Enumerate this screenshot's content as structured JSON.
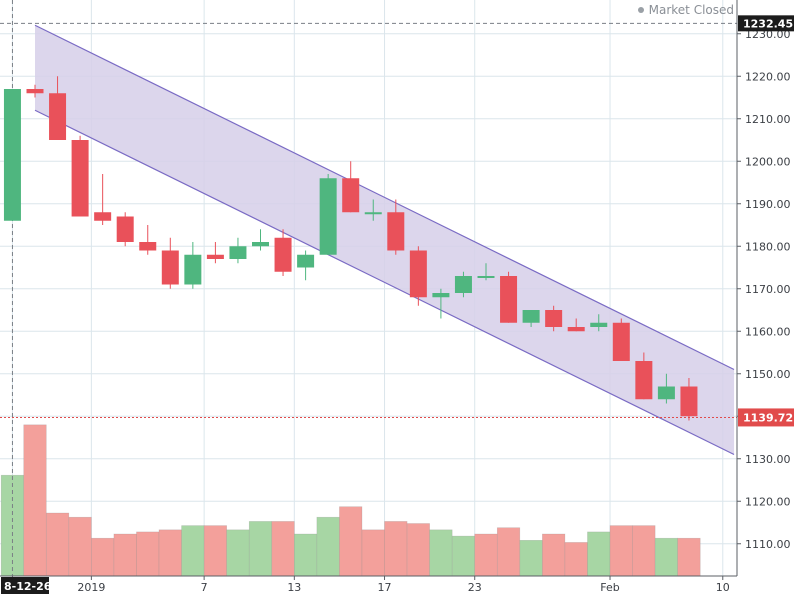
{
  "header": {
    "status_text": "Market Closed",
    "status_dot_color": "#9aa0a6"
  },
  "colors": {
    "up": "#4fb67f",
    "down": "#e9515a",
    "volume_up": "#a7d6a4",
    "volume_down": "#f3a09b",
    "channel_fill": "#d6cfe9",
    "channel_line": "#7a6bc4",
    "grid": "#dbe6ec",
    "current_price": "#e14b4b",
    "axis_label_dark": "#1c1c1c"
  },
  "chart_data": {
    "type": "candlestick",
    "ylim": [
      1101,
      1233
    ],
    "grid": true,
    "price_ticks": [
      "1110.00",
      "1120.00",
      "1130.00",
      "1140.00",
      "1150.00",
      "1160.00",
      "1170.00",
      "1180.00",
      "1190.00",
      "1200.00",
      "1210.00",
      "1220.00",
      "1230.00"
    ],
    "x_labels": [
      {
        "bar": -1,
        "text": "8-12-26",
        "highlight": true
      },
      {
        "bar": 2.5,
        "text": "2019"
      },
      {
        "bar": 7.5,
        "text": "7"
      },
      {
        "bar": 11.5,
        "text": "13"
      },
      {
        "bar": 15.5,
        "text": "17"
      },
      {
        "bar": 19.5,
        "text": "23"
      },
      {
        "bar": 25.5,
        "text": "Feb"
      },
      {
        "bar": 30.5,
        "text": "10"
      }
    ],
    "high_marker": {
      "value": 1232.45,
      "label": "1232.45"
    },
    "current_price": {
      "value": 1139.72,
      "label": "1139.72"
    },
    "channel": {
      "upper": [
        {
          "bar": 0,
          "price": 1232
        },
        {
          "bar": 31,
          "price": 1151
        }
      ],
      "lower": [
        {
          "bar": 0,
          "price": 1212
        },
        {
          "bar": 31,
          "price": 1131
        }
      ]
    },
    "candles": [
      {
        "o": 1186,
        "h": 1217,
        "l": 1186,
        "c": 1217
      },
      {
        "o": 1217,
        "h": 1218,
        "l": 1215,
        "c": 1216
      },
      {
        "o": 1216,
        "h": 1220,
        "l": 1205,
        "c": 1205
      },
      {
        "o": 1205,
        "h": 1206,
        "l": 1187,
        "c": 1187
      },
      {
        "o": 1188,
        "h": 1197,
        "l": 1185,
        "c": 1186
      },
      {
        "o": 1187,
        "h": 1188,
        "l": 1180,
        "c": 1181
      },
      {
        "o": 1181,
        "h": 1185,
        "l": 1178,
        "c": 1179
      },
      {
        "o": 1179,
        "h": 1182,
        "l": 1170,
        "c": 1171
      },
      {
        "o": 1171,
        "h": 1181,
        "l": 1170,
        "c": 1178
      },
      {
        "o": 1178,
        "h": 1181,
        "l": 1176,
        "c": 1177
      },
      {
        "o": 1177,
        "h": 1182,
        "l": 1176,
        "c": 1180
      },
      {
        "o": 1180,
        "h": 1184,
        "l": 1179,
        "c": 1181
      },
      {
        "o": 1182,
        "h": 1184,
        "l": 1173,
        "c": 1174
      },
      {
        "o": 1175,
        "h": 1179,
        "l": 1172,
        "c": 1178
      },
      {
        "o": 1178,
        "h": 1197,
        "l": 1178,
        "c": 1196
      },
      {
        "o": 1196,
        "h": 1200,
        "l": 1188,
        "c": 1188
      },
      {
        "o": 1188,
        "h": 1191,
        "l": 1186,
        "c": 1188
      },
      {
        "o": 1188,
        "h": 1191,
        "l": 1178,
        "c": 1179
      },
      {
        "o": 1179,
        "h": 1180,
        "l": 1166,
        "c": 1168
      },
      {
        "o": 1168,
        "h": 1170,
        "l": 1163,
        "c": 1169
      },
      {
        "o": 1169,
        "h": 1174,
        "l": 1168,
        "c": 1173
      },
      {
        "o": 1173,
        "h": 1176,
        "l": 1172,
        "c": 1173
      },
      {
        "o": 1173,
        "h": 1174,
        "l": 1162,
        "c": 1162
      },
      {
        "o": 1162,
        "h": 1165,
        "l": 1161,
        "c": 1165
      },
      {
        "o": 1165,
        "h": 1166,
        "l": 1160,
        "c": 1161
      },
      {
        "o": 1161,
        "h": 1163,
        "l": 1160,
        "c": 1160
      },
      {
        "o": 1161,
        "h": 1164,
        "l": 1160,
        "c": 1162
      },
      {
        "o": 1162,
        "h": 1163,
        "l": 1153,
        "c": 1153
      },
      {
        "o": 1153,
        "h": 1155,
        "l": 1144,
        "c": 1144
      },
      {
        "o": 1144,
        "h": 1150,
        "l": 1143,
        "c": 1147
      },
      {
        "o": 1147,
        "h": 1149,
        "l": 1139,
        "c": 1140
      }
    ],
    "volume": [
      {
        "bar": -1,
        "value": 0.24,
        "up": true
      },
      {
        "bar": 0,
        "value": 0.36,
        "up": false
      },
      {
        "bar": 1,
        "value": 0.15,
        "up": false
      },
      {
        "bar": 2,
        "value": 0.14,
        "up": false
      },
      {
        "bar": 3,
        "value": 0.09,
        "up": false
      },
      {
        "bar": 4,
        "value": 0.1,
        "up": false
      },
      {
        "bar": 5,
        "value": 0.105,
        "up": false
      },
      {
        "bar": 6,
        "value": 0.11,
        "up": false
      },
      {
        "bar": 7,
        "value": 0.12,
        "up": true
      },
      {
        "bar": 8,
        "value": 0.12,
        "up": false
      },
      {
        "bar": 9,
        "value": 0.11,
        "up": true
      },
      {
        "bar": 10,
        "value": 0.13,
        "up": true
      },
      {
        "bar": 11,
        "value": 0.13,
        "up": false
      },
      {
        "bar": 12,
        "value": 0.1,
        "up": true
      },
      {
        "bar": 13,
        "value": 0.14,
        "up": true
      },
      {
        "bar": 14,
        "value": 0.165,
        "up": false
      },
      {
        "bar": 15,
        "value": 0.11,
        "up": false
      },
      {
        "bar": 16,
        "value": 0.13,
        "up": false
      },
      {
        "bar": 17,
        "value": 0.125,
        "up": false
      },
      {
        "bar": 18,
        "value": 0.11,
        "up": true
      },
      {
        "bar": 19,
        "value": 0.095,
        "up": true
      },
      {
        "bar": 20,
        "value": 0.1,
        "up": false
      },
      {
        "bar": 21,
        "value": 0.115,
        "up": false
      },
      {
        "bar": 22,
        "value": 0.085,
        "up": true
      },
      {
        "bar": 23,
        "value": 0.1,
        "up": false
      },
      {
        "bar": 24,
        "value": 0.08,
        "up": false
      },
      {
        "bar": 25,
        "value": 0.105,
        "up": true
      },
      {
        "bar": 26,
        "value": 0.12,
        "up": false
      },
      {
        "bar": 27,
        "value": 0.12,
        "up": false
      },
      {
        "bar": 28,
        "value": 0.09,
        "up": true
      },
      {
        "bar": 29,
        "value": 0.09,
        "up": false
      }
    ]
  }
}
